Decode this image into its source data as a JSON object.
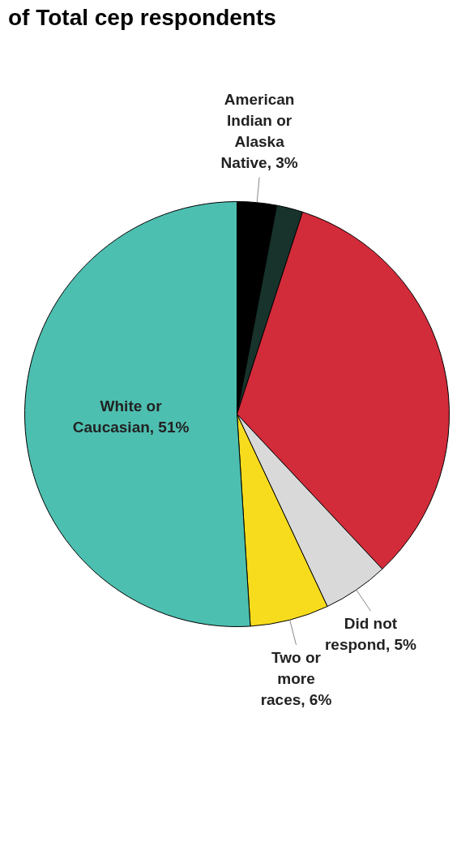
{
  "chart_data": {
    "type": "pie",
    "title": "of Total cep respondents",
    "categories": [
      "American Indian or Alaska Native",
      null,
      null,
      "Did not respond",
      "Two or more races",
      "White or Caucasian"
    ],
    "values": [
      3,
      2,
      33,
      5,
      6,
      51
    ],
    "value_labels": [
      "3%",
      null,
      null,
      "5%",
      "6%",
      "51%"
    ],
    "colors": [
      "#000000",
      "#17332c",
      "#d22b3a",
      "#d9d9d9",
      "#f7dc1e",
      "#4dbfb0"
    ],
    "legend": false
  }
}
